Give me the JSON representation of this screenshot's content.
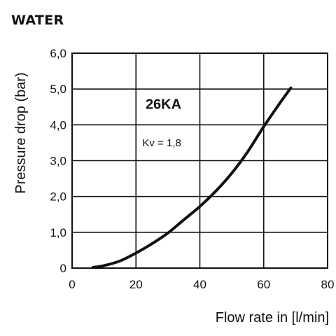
{
  "page": {
    "heading": "WATER"
  },
  "chart_data": {
    "type": "line",
    "title": "",
    "xlabel": "Flow rate in [l/min]",
    "ylabel": "Pressure drop (bar)",
    "xlim": [
      0,
      80
    ],
    "ylim": [
      0,
      6
    ],
    "x_ticks": [
      0,
      20,
      40,
      60,
      80
    ],
    "x_tick_labels": [
      "0",
      "20",
      "40",
      "60",
      "80"
    ],
    "y_ticks": [
      0,
      1,
      2,
      3,
      4,
      5,
      6
    ],
    "y_tick_labels": [
      "0",
      "1,0",
      "2,0",
      "3,0",
      "4,0",
      "5,0",
      "6,0"
    ],
    "grid": true,
    "series": [
      {
        "x": [
          6.5,
          10,
          15,
          20,
          25,
          30,
          35,
          40,
          45,
          50,
          55,
          60,
          65,
          68.5
        ],
        "y": [
          0.02,
          0.07,
          0.2,
          0.42,
          0.68,
          0.98,
          1.35,
          1.72,
          2.15,
          2.65,
          3.25,
          3.95,
          4.6,
          5.03
        ]
      }
    ],
    "annotations": [
      {
        "text": "26KA",
        "x": 23,
        "y": 4.45,
        "style": "bold"
      },
      {
        "text": "Kv = 1,8",
        "x": 22,
        "y": 3.4,
        "style": "normal"
      }
    ],
    "line_color": "#111111"
  }
}
